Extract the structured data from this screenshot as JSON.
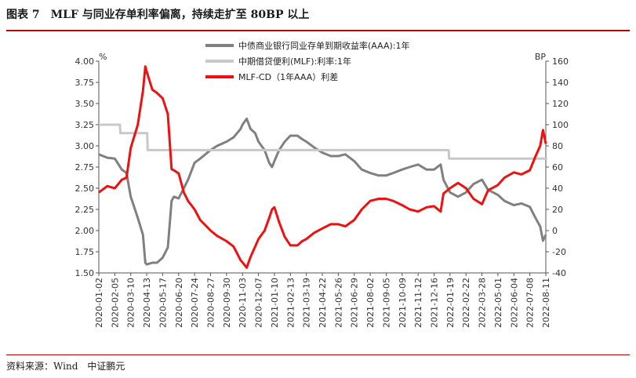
{
  "header": {
    "title": "图表 7　MLF 与同业存单利率偏离，持续走扩至 80BP 以上"
  },
  "footer": {
    "source": "资料来源：Wind　中证鹏元"
  },
  "chart_data": {
    "type": "line",
    "left_unit": "%",
    "right_unit": "BP",
    "ylim_left": [
      1.5,
      4.0
    ],
    "ylim_right": [
      -40,
      160
    ],
    "left_ticks": [
      "4.00",
      "3.75",
      "3.50",
      "3.25",
      "3.00",
      "2.75",
      "2.50",
      "2.25",
      "2.00",
      "1.75",
      "1.50"
    ],
    "right_ticks": [
      "160",
      "140",
      "120",
      "100",
      "80",
      "60",
      "40",
      "20",
      "0",
      "-20",
      "-40"
    ],
    "x_ticks": [
      "2020-01-02",
      "2020-02-05",
      "2020-03-10",
      "2020-04-13",
      "2020-05-17",
      "2020-06-20",
      "2020-07-24",
      "2020-08-27",
      "2020-09-30",
      "2020-11-03",
      "2020-12-07",
      "2021-01-10",
      "2021-02-13",
      "2021-03-19",
      "2021-04-22",
      "2021-05-26",
      "2021-06-29",
      "2021-08-02",
      "2021-09-05",
      "2021-10-09",
      "2021-11-12",
      "2021-12-16",
      "2022-01-19",
      "2022-02-22",
      "2022-03-28",
      "2022-05-01",
      "2022-06-04",
      "2022-07-08",
      "2022-08-11"
    ],
    "legend_position": "top-center",
    "series": [
      {
        "name": "中债商业银行同业存单到期收益率(AAA):1年",
        "axis": "left",
        "color": "#808080",
        "values": [
          [
            "2020-01-02",
            2.9
          ],
          [
            "2020-01-20",
            2.86
          ],
          [
            "2020-02-05",
            2.85
          ],
          [
            "2020-02-20",
            2.72
          ],
          [
            "2020-03-01",
            2.68
          ],
          [
            "2020-03-10",
            2.4
          ],
          [
            "2020-03-25",
            2.15
          ],
          [
            "2020-04-05",
            1.95
          ],
          [
            "2020-04-10",
            1.62
          ],
          [
            "2020-04-13",
            1.6
          ],
          [
            "2020-04-25",
            1.62
          ],
          [
            "2020-05-05",
            1.62
          ],
          [
            "2020-05-17",
            1.68
          ],
          [
            "2020-05-28",
            1.8
          ],
          [
            "2020-06-05",
            2.35
          ],
          [
            "2020-06-10",
            2.4
          ],
          [
            "2020-06-20",
            2.38
          ],
          [
            "2020-07-01",
            2.5
          ],
          [
            "2020-07-10",
            2.6
          ],
          [
            "2020-07-24",
            2.8
          ],
          [
            "2020-08-05",
            2.85
          ],
          [
            "2020-08-27",
            2.95
          ],
          [
            "2020-09-10",
            3.0
          ],
          [
            "2020-09-30",
            3.05
          ],
          [
            "2020-10-15",
            3.1
          ],
          [
            "2020-10-30",
            3.2
          ],
          [
            "2020-11-03",
            3.25
          ],
          [
            "2020-11-12",
            3.32
          ],
          [
            "2020-11-20",
            3.2
          ],
          [
            "2020-11-30",
            3.15
          ],
          [
            "2020-12-07",
            3.05
          ],
          [
            "2020-12-20",
            2.95
          ],
          [
            "2020-12-30",
            2.8
          ],
          [
            "2021-01-05",
            2.75
          ],
          [
            "2021-01-10",
            2.82
          ],
          [
            "2021-01-20",
            2.95
          ],
          [
            "2021-02-01",
            3.05
          ],
          [
            "2021-02-13",
            3.12
          ],
          [
            "2021-02-28",
            3.12
          ],
          [
            "2021-03-10",
            3.08
          ],
          [
            "2021-03-19",
            3.05
          ],
          [
            "2021-04-05",
            2.98
          ],
          [
            "2021-04-22",
            2.92
          ],
          [
            "2021-05-10",
            2.88
          ],
          [
            "2021-05-26",
            2.88
          ],
          [
            "2021-06-10",
            2.9
          ],
          [
            "2021-06-29",
            2.82
          ],
          [
            "2021-07-15",
            2.72
          ],
          [
            "2021-08-02",
            2.68
          ],
          [
            "2021-08-20",
            2.65
          ],
          [
            "2021-09-05",
            2.65
          ],
          [
            "2021-09-20",
            2.68
          ],
          [
            "2021-10-09",
            2.72
          ],
          [
            "2021-10-25",
            2.75
          ],
          [
            "2021-11-12",
            2.78
          ],
          [
            "2021-11-30",
            2.72
          ],
          [
            "2021-12-16",
            2.72
          ],
          [
            "2021-12-30",
            2.78
          ],
          [
            "2022-01-05",
            2.6
          ],
          [
            "2022-01-19",
            2.45
          ],
          [
            "2022-02-05",
            2.4
          ],
          [
            "2022-02-22",
            2.45
          ],
          [
            "2022-03-10",
            2.55
          ],
          [
            "2022-03-28",
            2.6
          ],
          [
            "2022-04-10",
            2.48
          ],
          [
            "2022-05-01",
            2.42
          ],
          [
            "2022-05-15",
            2.35
          ],
          [
            "2022-06-04",
            2.3
          ],
          [
            "2022-06-20",
            2.32
          ],
          [
            "2022-07-08",
            2.28
          ],
          [
            "2022-07-20",
            2.15
          ],
          [
            "2022-07-30",
            2.05
          ],
          [
            "2022-08-05",
            1.88
          ],
          [
            "2022-08-11",
            1.95
          ]
        ]
      },
      {
        "name": "中期借贷便利(MLF):利率:1年",
        "axis": "left",
        "color": "#c8c8c8",
        "values": [
          [
            "2020-01-02",
            3.25
          ],
          [
            "2020-02-16",
            3.25
          ],
          [
            "2020-02-17",
            3.15
          ],
          [
            "2020-04-14",
            3.15
          ],
          [
            "2020-04-15",
            2.95
          ],
          [
            "2022-01-16",
            2.95
          ],
          [
            "2022-01-17",
            2.85
          ],
          [
            "2022-08-14",
            2.85
          ]
        ]
      },
      {
        "name": "MLF-CD（1年AAA）利差",
        "axis": "right",
        "color": "#ee1111",
        "values": [
          [
            "2020-01-02",
            36
          ],
          [
            "2020-01-20",
            42
          ],
          [
            "2020-02-05",
            40
          ],
          [
            "2020-02-20",
            48
          ],
          [
            "2020-03-01",
            50
          ],
          [
            "2020-03-10",
            78
          ],
          [
            "2020-03-25",
            100
          ],
          [
            "2020-04-05",
            132
          ],
          [
            "2020-04-10",
            155
          ],
          [
            "2020-04-13",
            150
          ],
          [
            "2020-04-25",
            133
          ],
          [
            "2020-05-05",
            130
          ],
          [
            "2020-05-17",
            125
          ],
          [
            "2020-05-28",
            110
          ],
          [
            "2020-06-05",
            58
          ],
          [
            "2020-06-10",
            57
          ],
          [
            "2020-06-20",
            54
          ],
          [
            "2020-07-01",
            36
          ],
          [
            "2020-07-10",
            28
          ],
          [
            "2020-07-24",
            20
          ],
          [
            "2020-08-05",
            10
          ],
          [
            "2020-08-27",
            0
          ],
          [
            "2020-09-10",
            -5
          ],
          [
            "2020-09-30",
            -10
          ],
          [
            "2020-10-15",
            -15
          ],
          [
            "2020-10-30",
            -28
          ],
          [
            "2020-11-03",
            -30
          ],
          [
            "2020-11-12",
            -35
          ],
          [
            "2020-11-20",
            -25
          ],
          [
            "2020-11-30",
            -15
          ],
          [
            "2020-12-07",
            -8
          ],
          [
            "2020-12-20",
            0
          ],
          [
            "2020-12-30",
            12
          ],
          [
            "2021-01-05",
            20
          ],
          [
            "2021-01-10",
            22
          ],
          [
            "2021-01-20",
            8
          ],
          [
            "2021-02-01",
            -6
          ],
          [
            "2021-02-13",
            -14
          ],
          [
            "2021-02-28",
            -14
          ],
          [
            "2021-03-10",
            -10
          ],
          [
            "2021-03-19",
            -8
          ],
          [
            "2021-04-05",
            -2
          ],
          [
            "2021-04-22",
            2
          ],
          [
            "2021-05-10",
            6
          ],
          [
            "2021-05-26",
            6
          ],
          [
            "2021-06-10",
            4
          ],
          [
            "2021-06-29",
            10
          ],
          [
            "2021-07-15",
            20
          ],
          [
            "2021-08-02",
            28
          ],
          [
            "2021-08-20",
            30
          ],
          [
            "2021-09-05",
            30
          ],
          [
            "2021-09-20",
            28
          ],
          [
            "2021-10-09",
            24
          ],
          [
            "2021-10-25",
            20
          ],
          [
            "2021-11-12",
            18
          ],
          [
            "2021-11-30",
            22
          ],
          [
            "2021-12-16",
            23
          ],
          [
            "2021-12-30",
            18
          ],
          [
            "2022-01-05",
            35
          ],
          [
            "2022-01-19",
            40
          ],
          [
            "2022-02-05",
            45
          ],
          [
            "2022-02-22",
            40
          ],
          [
            "2022-03-10",
            30
          ],
          [
            "2022-03-28",
            25
          ],
          [
            "2022-04-10",
            38
          ],
          [
            "2022-05-01",
            43
          ],
          [
            "2022-05-15",
            50
          ],
          [
            "2022-06-04",
            55
          ],
          [
            "2022-06-20",
            53
          ],
          [
            "2022-07-08",
            57
          ],
          [
            "2022-07-20",
            70
          ],
          [
            "2022-07-30",
            80
          ],
          [
            "2022-08-05",
            95
          ],
          [
            "2022-08-11",
            82
          ]
        ]
      }
    ]
  }
}
